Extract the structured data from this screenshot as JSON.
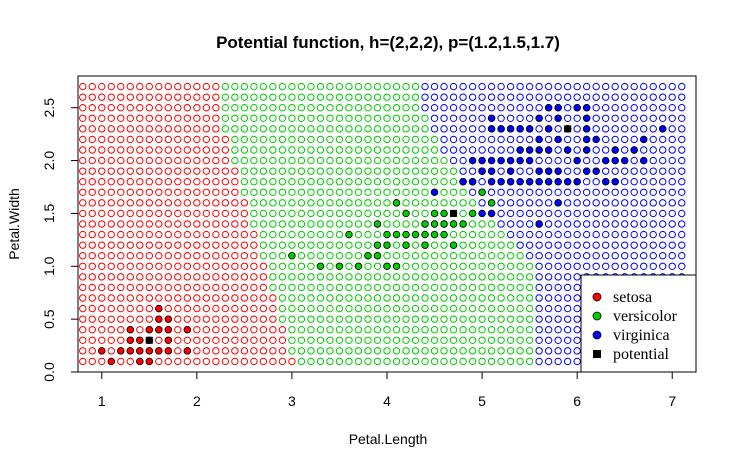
{
  "chart_data": {
    "type": "scatter",
    "title": "Potential function, h=(2,2,2), p=(1.2,1.5,1.7)",
    "xlabel": "Petal.Length",
    "ylabel": "Petal.Width",
    "xlim": [
      0.75,
      7.25
    ],
    "ylim": [
      0,
      2.8
    ],
    "xticks": [
      "1",
      "2",
      "3",
      "4",
      "5",
      "6",
      "7"
    ],
    "yticks": [
      "0.0",
      "0.5",
      "1.0",
      "1.5",
      "2.0",
      "2.5"
    ],
    "grid": {
      "x_start": 0.8,
      "x_step": 0.1,
      "x_count": 64,
      "y_start": 0.1,
      "y_step": 0.1,
      "y_count": 27
    },
    "regions": [
      {
        "class": "setosa",
        "color": "#ff0000"
      },
      {
        "class": "versicolor",
        "color": "#00cc00"
      },
      {
        "class": "virginica",
        "color": "#0000ff"
      }
    ],
    "region_boundary": [
      {
        "y": 0.1,
        "x_setosa_max": 3.0,
        "x_versicolor_max": 5.5
      },
      {
        "y": 1.0,
        "x_setosa_max": 2.7,
        "x_versicolor_max": 5.5
      },
      {
        "y": 1.6,
        "x_setosa_max": 2.5,
        "x_versicolor_max": 4.9
      },
      {
        "y": 2.2,
        "x_setosa_max": 2.3,
        "x_versicolor_max": 4.5
      },
      {
        "y": 2.7,
        "x_setosa_max": 2.2,
        "x_versicolor_max": 4.3
      }
    ],
    "series": [
      {
        "name": "setosa",
        "color": "#ff0000",
        "points": [
          [
            1.1,
            0.1
          ],
          [
            1.4,
            0.1
          ],
          [
            1.5,
            0.1
          ],
          [
            1.2,
            0.2
          ],
          [
            1.3,
            0.2
          ],
          [
            1.4,
            0.2
          ],
          [
            1.5,
            0.2
          ],
          [
            1.6,
            0.2
          ],
          [
            1.7,
            0.2
          ],
          [
            1.9,
            0.2
          ],
          [
            1.0,
            0.2
          ],
          [
            1.3,
            0.3
          ],
          [
            1.4,
            0.3
          ],
          [
            1.5,
            0.3
          ],
          [
            1.7,
            0.3
          ],
          [
            1.3,
            0.4
          ],
          [
            1.5,
            0.4
          ],
          [
            1.6,
            0.4
          ],
          [
            1.7,
            0.4
          ],
          [
            1.9,
            0.4
          ],
          [
            1.6,
            0.6
          ],
          [
            1.6,
            0.5
          ],
          [
            1.7,
            0.5
          ]
        ]
      },
      {
        "name": "versicolor",
        "color": "#00cc00",
        "points": [
          [
            3.0,
            1.1
          ],
          [
            3.3,
            1.0
          ],
          [
            3.5,
            1.0
          ],
          [
            3.7,
            1.0
          ],
          [
            3.9,
            1.1
          ],
          [
            4.0,
            1.0
          ],
          [
            4.1,
            1.0
          ],
          [
            3.8,
            1.1
          ],
          [
            3.6,
            1.3
          ],
          [
            3.9,
            1.2
          ],
          [
            4.0,
            1.2
          ],
          [
            4.0,
            1.3
          ],
          [
            4.1,
            1.3
          ],
          [
            4.2,
            1.2
          ],
          [
            4.2,
            1.3
          ],
          [
            4.3,
            1.3
          ],
          [
            4.4,
            1.2
          ],
          [
            4.4,
            1.3
          ],
          [
            4.5,
            1.3
          ],
          [
            4.6,
            1.3
          ],
          [
            4.7,
            1.2
          ],
          [
            3.9,
            1.4
          ],
          [
            4.2,
            1.5
          ],
          [
            4.4,
            1.4
          ],
          [
            4.5,
            1.4
          ],
          [
            4.6,
            1.4
          ],
          [
            4.7,
            1.4
          ],
          [
            4.1,
            1.6
          ],
          [
            4.5,
            1.5
          ],
          [
            4.6,
            1.5
          ],
          [
            4.8,
            1.4
          ],
          [
            4.8,
            1.8
          ],
          [
            4.9,
            1.5
          ],
          [
            5.0,
            1.7
          ],
          [
            5.1,
            1.6
          ]
        ]
      },
      {
        "name": "virginica",
        "color": "#0000ff",
        "points": [
          [
            4.5,
            1.7
          ],
          [
            4.8,
            1.8
          ],
          [
            4.9,
            1.8
          ],
          [
            5.0,
            1.5
          ],
          [
            4.9,
            2.0
          ],
          [
            5.0,
            2.0
          ],
          [
            5.0,
            1.9
          ],
          [
            5.1,
            1.5
          ],
          [
            5.1,
            1.8
          ],
          [
            5.1,
            1.9
          ],
          [
            5.1,
            2.0
          ],
          [
            5.1,
            2.3
          ],
          [
            5.1,
            2.4
          ],
          [
            5.2,
            2.0
          ],
          [
            5.2,
            2.3
          ],
          [
            5.3,
            1.9
          ],
          [
            5.3,
            2.3
          ],
          [
            5.4,
            2.1
          ],
          [
            5.4,
            2.3
          ],
          [
            5.5,
            1.8
          ],
          [
            5.5,
            2.1
          ],
          [
            5.5,
            2.3
          ],
          [
            5.6,
            1.4
          ],
          [
            5.6,
            1.8
          ],
          [
            5.6,
            2.1
          ],
          [
            5.6,
            2.2
          ],
          [
            5.6,
            2.4
          ],
          [
            5.7,
            2.1
          ],
          [
            5.7,
            2.3
          ],
          [
            5.7,
            2.5
          ],
          [
            5.8,
            1.6
          ],
          [
            5.8,
            1.8
          ],
          [
            5.8,
            2.2
          ],
          [
            5.9,
            2.1
          ],
          [
            5.9,
            2.3
          ],
          [
            6.0,
            1.8
          ],
          [
            6.0,
            2.5
          ],
          [
            6.1,
            1.9
          ],
          [
            6.1,
            2.3
          ],
          [
            6.1,
            2.5
          ],
          [
            6.3,
            1.8
          ],
          [
            6.4,
            2.0
          ],
          [
            6.6,
            2.1
          ],
          [
            6.7,
            2.0
          ],
          [
            6.7,
            2.2
          ],
          [
            6.9,
            2.3
          ],
          [
            5.0,
            1.9
          ],
          [
            4.9,
            1.8
          ],
          [
            5.2,
            1.8
          ],
          [
            5.4,
            1.8
          ],
          [
            5.6,
            1.9
          ],
          [
            5.7,
            1.9
          ],
          [
            5.4,
            2.0
          ],
          [
            5.3,
            2.0
          ],
          [
            5.8,
            1.9
          ],
          [
            6.0,
            2.0
          ],
          [
            6.3,
            2.0
          ],
          [
            5.5,
            2.0
          ],
          [
            6.2,
            1.9
          ],
          [
            6.5,
            2.0
          ],
          [
            6.1,
            2.1
          ],
          [
            6.1,
            2.2
          ],
          [
            6.4,
            2.1
          ],
          [
            6.2,
            2.2
          ],
          [
            5.3,
            1.8
          ],
          [
            5.7,
            1.8
          ],
          [
            5.9,
            1.8
          ],
          [
            6.4,
            1.8
          ],
          [
            5.8,
            2.4
          ],
          [
            5.8,
            2.5
          ],
          [
            6.1,
            2.4
          ]
        ]
      }
    ],
    "potentials": [
      {
        "class": "setosa",
        "x": 1.5,
        "y": 0.3
      },
      {
        "class": "versicolor",
        "x": 4.7,
        "y": 1.5
      },
      {
        "class": "virginica",
        "x": 5.9,
        "y": 2.3
      }
    ],
    "legend": {
      "position": "bottom-right",
      "entries": [
        {
          "label": "setosa",
          "color": "#ff0000",
          "shape": "circle"
        },
        {
          "label": "versicolor",
          "color": "#00cc00",
          "shape": "circle"
        },
        {
          "label": "virginica",
          "color": "#0000ff",
          "shape": "circle"
        },
        {
          "label": "potential",
          "color": "#000000",
          "shape": "square"
        }
      ]
    }
  }
}
